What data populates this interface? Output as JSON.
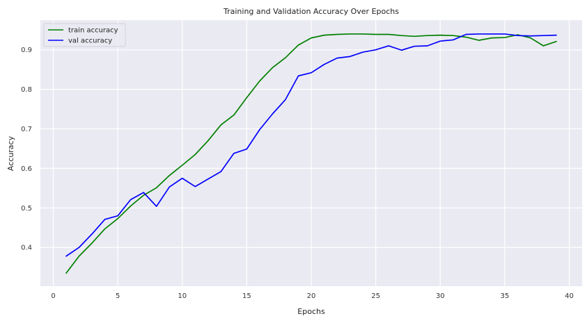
{
  "chart_data": {
    "type": "line",
    "title": "Training and Validation Accuracy Over Epochs",
    "xlabel": "Epochs",
    "ylabel": "Accuracy",
    "xlim": [
      -1,
      41
    ],
    "ylim": [
      0.302,
      0.975
    ],
    "xticks": [
      0,
      5,
      10,
      15,
      20,
      25,
      30,
      35,
      40
    ],
    "yticks": [
      0.4,
      0.5,
      0.6,
      0.7,
      0.8,
      0.9
    ],
    "grid": true,
    "legend_position": "top-left",
    "x": [
      1,
      2,
      3,
      4,
      5,
      6,
      7,
      8,
      9,
      10,
      11,
      12,
      13,
      14,
      15,
      16,
      17,
      18,
      19,
      20,
      21,
      22,
      23,
      24,
      25,
      26,
      27,
      28,
      29,
      30,
      31,
      32,
      33,
      34,
      35,
      36,
      37,
      38,
      39
    ],
    "series": [
      {
        "name": "train accuracy",
        "color": "#008000",
        "values": [
          0.335,
          0.378,
          0.411,
          0.447,
          0.473,
          0.505,
          0.532,
          0.551,
          0.582,
          0.608,
          0.635,
          0.67,
          0.71,
          0.735,
          0.779,
          0.821,
          0.855,
          0.88,
          0.912,
          0.93,
          0.937,
          0.939,
          0.94,
          0.94,
          0.939,
          0.939,
          0.936,
          0.934,
          0.936,
          0.937,
          0.936,
          0.932,
          0.924,
          0.93,
          0.931,
          0.938,
          0.93,
          0.91,
          0.921
        ]
      },
      {
        "name": "val accuracy",
        "color": "#0000ff",
        "values": [
          0.378,
          0.4,
          0.434,
          0.471,
          0.48,
          0.521,
          0.539,
          0.504,
          0.553,
          0.575,
          0.554,
          0.573,
          0.592,
          0.638,
          0.649,
          0.698,
          0.738,
          0.774,
          0.834,
          0.842,
          0.863,
          0.879,
          0.883,
          0.894,
          0.9,
          0.91,
          0.899,
          0.909,
          0.91,
          0.922,
          0.925,
          0.939,
          0.94,
          0.94,
          0.94,
          0.936,
          0.935,
          0.936,
          0.937
        ]
      }
    ]
  }
}
